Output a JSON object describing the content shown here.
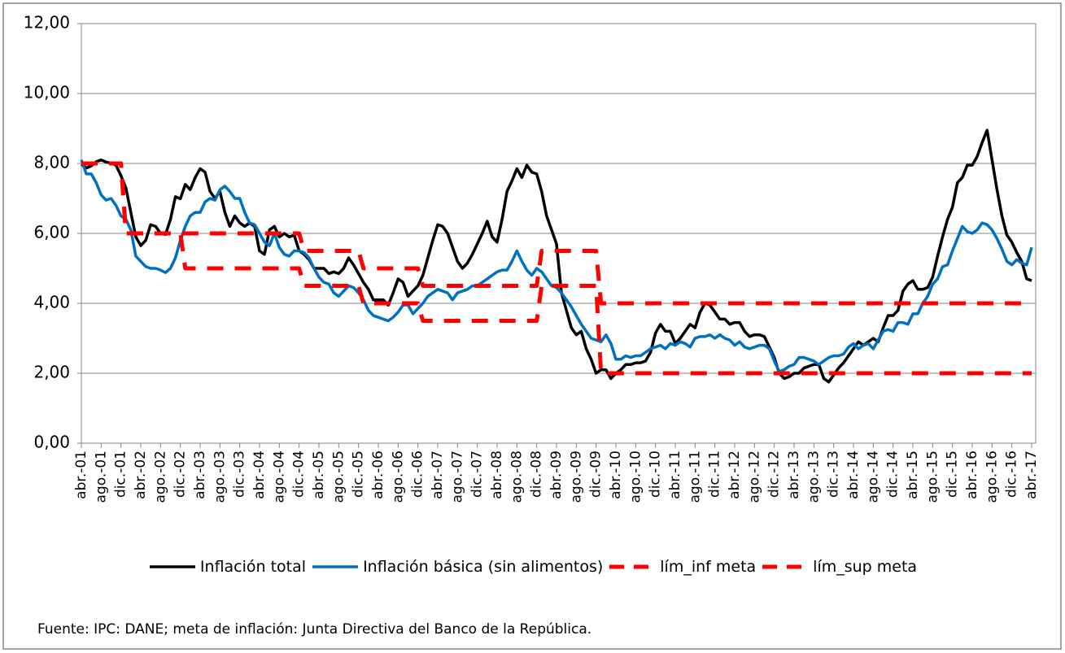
{
  "chart_data": {
    "type": "line",
    "source": "Fuente: IPC: DANE;  meta de inflación: Junta Directiva del Banco de la República.",
    "categories": [
      "abr.-01",
      null,
      null,
      null,
      "ago.-01",
      null,
      null,
      null,
      "dic.-01",
      null,
      null,
      null,
      "abr.-02",
      null,
      null,
      null,
      "ago.-02",
      null,
      null,
      null,
      "dic.-02",
      null,
      null,
      null,
      "abr.-03",
      null,
      null,
      null,
      "ago.-03",
      null,
      null,
      null,
      "dic.-03",
      null,
      null,
      null,
      "abr.-04",
      null,
      null,
      null,
      "ago.-04",
      null,
      null,
      null,
      "dic.-04",
      null,
      null,
      null,
      "abr.-05",
      null,
      null,
      null,
      "ago.-05",
      null,
      null,
      null,
      "dic.-05",
      null,
      null,
      null,
      "abr.-06",
      null,
      null,
      null,
      "ago.-06",
      null,
      null,
      null,
      "dic.-06",
      null,
      null,
      null,
      "abr.-07",
      null,
      null,
      null,
      "ago.-07",
      null,
      null,
      null,
      "dic.-07",
      null,
      null,
      null,
      "abr.-08",
      null,
      null,
      null,
      "ago.-08",
      null,
      null,
      null,
      "dic.-08",
      null,
      null,
      null,
      "abr.-09",
      null,
      null,
      null,
      "ago.-09",
      null,
      null,
      null,
      "dic.-09",
      null,
      null,
      null,
      "abr.-10",
      null,
      null,
      null,
      "ago.-10",
      null,
      null,
      null,
      "dic.-10",
      null,
      null,
      null,
      "abr.-11",
      null,
      null,
      null,
      "ago.-11",
      null,
      null,
      null,
      "dic.-11",
      null,
      null,
      null,
      "abr.-12",
      null,
      null,
      null,
      "ago.-12",
      null,
      null,
      null,
      "dic.-12",
      null,
      null,
      null,
      "abr.-13",
      null,
      null,
      null,
      "ago.-13",
      null,
      null,
      null,
      "dic.-13",
      null,
      null,
      null,
      "abr.-14",
      null,
      null,
      null,
      "ago.-14",
      null,
      null,
      null,
      "dic.-14",
      null,
      null,
      null,
      "abr.-15",
      null,
      null,
      null,
      "ago.-15",
      null,
      null,
      null,
      "dic.-15",
      null,
      null,
      null,
      "abr.-16",
      null,
      null,
      null,
      "ago.-16",
      null,
      null,
      null,
      "dic.-16",
      null,
      null,
      null,
      "abr.-17"
    ],
    "series": [
      {
        "name": "Inflación total",
        "color": "#000000",
        "dashed": false,
        "values": [
          7.98,
          7.87,
          7.93,
          8.05,
          8.1,
          8.04,
          8.01,
          7.95,
          7.65,
          7.3,
          6.6,
          5.9,
          5.65,
          5.8,
          6.25,
          6.2,
          6.0,
          5.97,
          6.4,
          7.05,
          6.99,
          7.4,
          7.25,
          7.6,
          7.85,
          7.75,
          7.2,
          7.0,
          7.2,
          6.6,
          6.2,
          6.5,
          6.3,
          6.2,
          6.3,
          6.2,
          5.5,
          5.4,
          6.1,
          6.2,
          5.9,
          6.0,
          5.9,
          5.95,
          5.5,
          5.4,
          5.25,
          5.0,
          5.0,
          5.0,
          4.85,
          4.9,
          4.85,
          5.0,
          5.3,
          5.1,
          4.85,
          4.6,
          4.4,
          4.1,
          4.1,
          4.1,
          3.95,
          4.3,
          4.7,
          4.6,
          4.2,
          4.35,
          4.5,
          4.8,
          5.3,
          5.8,
          6.25,
          6.2,
          6.0,
          5.6,
          5.2,
          5.0,
          5.15,
          5.4,
          5.7,
          6.0,
          6.35,
          5.9,
          5.75,
          6.4,
          7.2,
          7.5,
          7.85,
          7.6,
          7.95,
          7.75,
          7.7,
          7.2,
          6.5,
          6.1,
          5.7,
          4.3,
          3.8,
          3.3,
          3.1,
          3.2,
          2.7,
          2.4,
          2.0,
          2.1,
          2.1,
          1.85,
          2.0,
          2.1,
          2.25,
          2.25,
          2.3,
          2.3,
          2.35,
          2.6,
          3.15,
          3.4,
          3.2,
          3.2,
          2.85,
          3.0,
          3.2,
          3.4,
          3.3,
          3.75,
          4.0,
          3.95,
          3.75,
          3.55,
          3.55,
          3.4,
          3.45,
          3.45,
          3.2,
          3.05,
          3.1,
          3.1,
          3.05,
          2.75,
          2.45,
          2.0,
          1.85,
          1.9,
          2.0,
          2.0,
          2.15,
          2.2,
          2.25,
          2.25,
          1.85,
          1.75,
          1.95,
          2.15,
          2.3,
          2.5,
          2.7,
          2.9,
          2.8,
          2.9,
          3.0,
          2.9,
          3.3,
          3.65,
          3.65,
          3.8,
          4.35,
          4.55,
          4.65,
          4.4,
          4.4,
          4.45,
          4.75,
          5.35,
          5.9,
          6.4,
          6.75,
          7.45,
          7.6,
          7.95,
          7.95,
          8.2,
          8.6,
          8.95,
          8.1,
          7.25,
          6.5,
          5.95,
          5.75,
          5.45,
          5.2,
          4.7,
          4.65
        ]
      },
      {
        "name": "Inflación básica (sin alimentos)",
        "color": "#0070c0",
        "dashed": false,
        "values": [
          8.1,
          7.7,
          7.7,
          7.45,
          7.1,
          6.95,
          7.0,
          6.8,
          6.5,
          6.4,
          6.1,
          5.35,
          5.2,
          5.05,
          5.0,
          5.0,
          4.95,
          4.88,
          5.0,
          5.3,
          5.8,
          6.2,
          6.5,
          6.6,
          6.6,
          6.9,
          7.0,
          6.95,
          7.25,
          7.35,
          7.2,
          7.0,
          7.0,
          6.6,
          6.3,
          6.25,
          6.0,
          5.75,
          5.65,
          6.0,
          5.6,
          5.4,
          5.35,
          5.5,
          5.5,
          5.45,
          5.3,
          5.0,
          4.75,
          4.6,
          4.55,
          4.3,
          4.2,
          4.35,
          4.5,
          4.45,
          4.3,
          4.1,
          3.8,
          3.65,
          3.6,
          3.55,
          3.5,
          3.6,
          3.75,
          3.95,
          3.95,
          3.7,
          3.85,
          4.0,
          4.2,
          4.3,
          4.4,
          4.35,
          4.3,
          4.1,
          4.3,
          4.35,
          4.4,
          4.5,
          4.5,
          4.6,
          4.7,
          4.8,
          4.9,
          4.95,
          4.95,
          5.2,
          5.5,
          5.2,
          4.95,
          4.8,
          5.0,
          4.9,
          4.7,
          4.5,
          4.45,
          4.3,
          4.1,
          3.9,
          3.65,
          3.4,
          3.2,
          3.0,
          2.95,
          2.9,
          3.1,
          2.85,
          2.4,
          2.4,
          2.5,
          2.45,
          2.5,
          2.5,
          2.6,
          2.7,
          2.75,
          2.8,
          2.7,
          2.85,
          2.8,
          2.9,
          2.85,
          2.75,
          3.0,
          3.05,
          3.05,
          3.1,
          3.0,
          3.1,
          3.0,
          2.95,
          2.8,
          2.9,
          2.75,
          2.7,
          2.75,
          2.8,
          2.8,
          2.7,
          2.35,
          2.05,
          2.1,
          2.2,
          2.25,
          2.45,
          2.45,
          2.4,
          2.35,
          2.25,
          2.35,
          2.45,
          2.5,
          2.5,
          2.55,
          2.75,
          2.85,
          2.7,
          2.8,
          2.85,
          2.7,
          2.95,
          3.2,
          3.25,
          3.2,
          3.45,
          3.45,
          3.4,
          3.7,
          3.7,
          4.0,
          4.2,
          4.55,
          4.7,
          5.05,
          5.1,
          5.5,
          5.85,
          6.2,
          6.05,
          6.0,
          6.1,
          6.3,
          6.25,
          6.1,
          5.85,
          5.55,
          5.2,
          5.1,
          5.25,
          5.15,
          5.1,
          5.6
        ]
      },
      {
        "name": "lím_inf meta",
        "color": "#ff0000",
        "dashed": true,
        "values": [
          8,
          8,
          8,
          8,
          8,
          8,
          8,
          8,
          8,
          6,
          6,
          6,
          6,
          6,
          6,
          6,
          6,
          6,
          6,
          6,
          6,
          5,
          5,
          5,
          5,
          5,
          5,
          5,
          5,
          5,
          5,
          5,
          5,
          5,
          5,
          5,
          5,
          5,
          5,
          5,
          5,
          5,
          5,
          5,
          5,
          4.5,
          4.5,
          4.5,
          4.5,
          4.5,
          4.5,
          4.5,
          4.5,
          4.5,
          4.5,
          4.5,
          4.5,
          4,
          4,
          4,
          4,
          4,
          4,
          4,
          4,
          4,
          4,
          4,
          4,
          3.5,
          3.5,
          3.5,
          3.5,
          3.5,
          3.5,
          3.5,
          3.5,
          3.5,
          3.5,
          3.5,
          3.5,
          3.5,
          3.5,
          3.5,
          3.5,
          3.5,
          3.5,
          3.5,
          3.5,
          3.5,
          3.5,
          3.5,
          3.5,
          4.5,
          4.5,
          4.5,
          4.5,
          4.5,
          4.5,
          4.5,
          4.5,
          4.5,
          4.5,
          4.5,
          4.5,
          2,
          2,
          2,
          2,
          2,
          2,
          2,
          2,
          2,
          2,
          2,
          2,
          2,
          2,
          2,
          2,
          2,
          2,
          2,
          2,
          2,
          2,
          2,
          2,
          2,
          2,
          2,
          2,
          2,
          2,
          2,
          2,
          2,
          2,
          2,
          2,
          2,
          2,
          2,
          2,
          2,
          2,
          2,
          2,
          2,
          2,
          2,
          2,
          2,
          2,
          2,
          2,
          2,
          2,
          2,
          2,
          2,
          2,
          2,
          2,
          2,
          2,
          2,
          2,
          2,
          2,
          2,
          2,
          2,
          2,
          2,
          2,
          2,
          2,
          2,
          2,
          2,
          2,
          2,
          2,
          2,
          2,
          2,
          2,
          2,
          2,
          2,
          2
        ]
      },
      {
        "name": "lím_sup meta",
        "color": "#ff0000",
        "dashed": true,
        "values": [
          8,
          8,
          8,
          8,
          8,
          8,
          8,
          8,
          8,
          6,
          6,
          6,
          6,
          6,
          6,
          6,
          6,
          6,
          6,
          6,
          6,
          6,
          6,
          6,
          6,
          6,
          6,
          6,
          6,
          6,
          6,
          6,
          6,
          6,
          6,
          6,
          6,
          6,
          6,
          6,
          6,
          6,
          6,
          6,
          6,
          5.5,
          5.5,
          5.5,
          5.5,
          5.5,
          5.5,
          5.5,
          5.5,
          5.5,
          5.5,
          5.5,
          5.5,
          5,
          5,
          5,
          5,
          5,
          5,
          5,
          5,
          5,
          5,
          5,
          5,
          4.5,
          4.5,
          4.5,
          4.5,
          4.5,
          4.5,
          4.5,
          4.5,
          4.5,
          4.5,
          4.5,
          4.5,
          4.5,
          4.5,
          4.5,
          4.5,
          4.5,
          4.5,
          4.5,
          4.5,
          4.5,
          4.5,
          4.5,
          4.5,
          5.5,
          5.5,
          5.5,
          5.5,
          5.5,
          5.5,
          5.5,
          5.5,
          5.5,
          5.5,
          5.5,
          5.5,
          4,
          4,
          4,
          4,
          4,
          4,
          4,
          4,
          4,
          4,
          4,
          4,
          4,
          4,
          4,
          4,
          4,
          4,
          4,
          4,
          4,
          4,
          4,
          4,
          4,
          4,
          4,
          4,
          4,
          4,
          4,
          4,
          4,
          4,
          4,
          4,
          4,
          4,
          4,
          4,
          4,
          4,
          4,
          4,
          4,
          4,
          4,
          4,
          4,
          4,
          4,
          4,
          4,
          4,
          4,
          4,
          4,
          4,
          4,
          4,
          4,
          4,
          4,
          4,
          4,
          4,
          4,
          4,
          4,
          4,
          4,
          4,
          4,
          4,
          4,
          4,
          4,
          4,
          4,
          4,
          4,
          4,
          4,
          4,
          4,
          4,
          4,
          4
        ]
      }
    ],
    "ylim": [
      0,
      12
    ],
    "yticks": [
      {
        "value": 0,
        "label": "0,00"
      },
      {
        "value": 2,
        "label": "2,00"
      },
      {
        "value": 4,
        "label": "4,00"
      },
      {
        "value": 6,
        "label": "6,00"
      },
      {
        "value": 8,
        "label": "8,00"
      },
      {
        "value": 10,
        "label": "10,00"
      },
      {
        "value": 12,
        "label": "12,00"
      }
    ],
    "grid": true
  }
}
